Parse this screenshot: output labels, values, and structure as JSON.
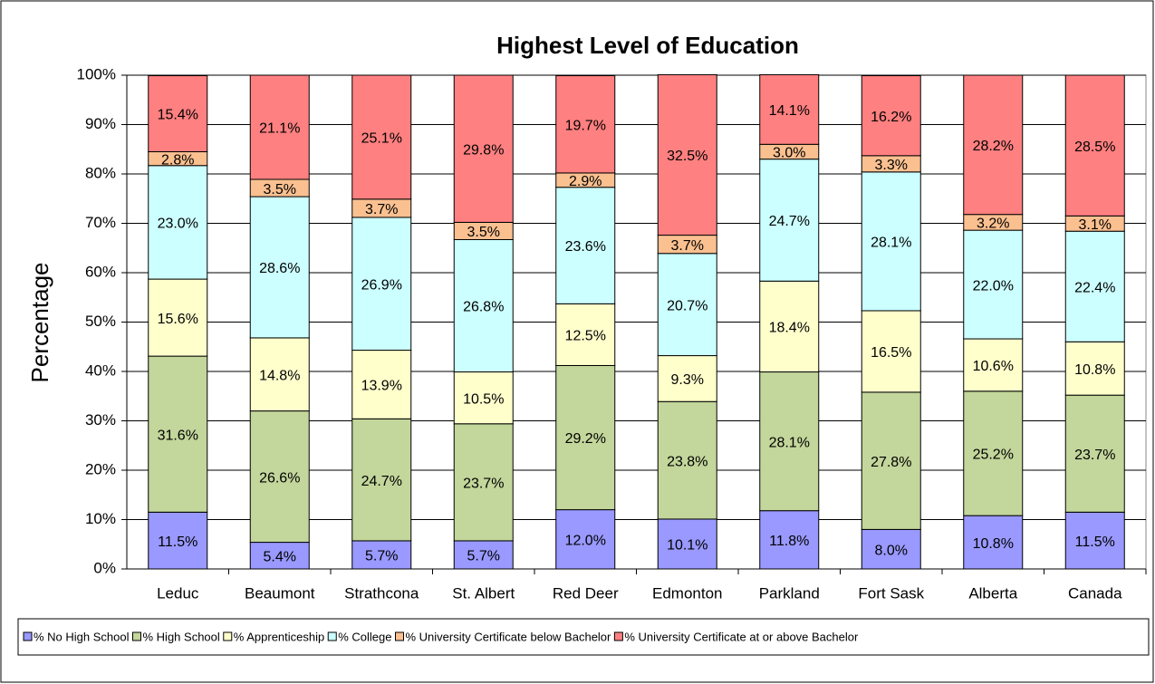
{
  "chart_data": {
    "type": "stacked_bar",
    "title": "Highest Level of Education",
    "y_label": "Percentage",
    "categories": [
      "Leduc",
      "Beaumont",
      "Strathcona",
      "St. Albert",
      "Red Deer",
      "Edmonton",
      "Parkland",
      "Fort Sask",
      "Alberta",
      "Canada"
    ],
    "series": [
      {
        "name": "% No High School",
        "color": "#9999ff",
        "values": [
          11.5,
          5.4,
          5.7,
          5.7,
          12.0,
          10.1,
          11.8,
          8.0,
          10.8,
          11.5
        ],
        "value_labels": [
          "11.5%",
          "5.4%",
          "5.7%",
          "5.7%",
          "12.0%",
          "10.1%",
          "11.8%",
          "8.0%",
          "10.8%",
          "11.5%"
        ]
      },
      {
        "name": "% High School",
        "color": "#c3d69b",
        "values": [
          31.6,
          26.6,
          24.7,
          23.7,
          29.2,
          23.8,
          28.1,
          27.8,
          25.2,
          23.7
        ],
        "value_labels": [
          "31.6%",
          "26.6%",
          "24.7%",
          "23.7%",
          "29.2%",
          "23.8%",
          "28.1%",
          "27.8%",
          "25.2%",
          "23.7%"
        ]
      },
      {
        "name": "% Apprenticeship",
        "color": "#ffffcc",
        "values": [
          15.6,
          14.8,
          13.9,
          10.5,
          12.5,
          9.3,
          18.4,
          16.5,
          10.6,
          10.8
        ],
        "value_labels": [
          "15.6%",
          "14.8%",
          "13.9%",
          "10.5%",
          "12.5%",
          "9.3%",
          "18.4%",
          "16.5%",
          "10.6%",
          "10.8%"
        ]
      },
      {
        "name": "% College",
        "color": "#ccffff",
        "values": [
          23.0,
          28.6,
          26.9,
          26.8,
          23.6,
          20.7,
          24.7,
          28.1,
          22.0,
          22.4
        ],
        "value_labels": [
          "23.0%",
          "28.6%",
          "26.9%",
          "26.8%",
          "23.6%",
          "20.7%",
          "24.7%",
          "28.1%",
          "22.0%",
          "22.4%"
        ]
      },
      {
        "name": "% University Certificate below Bachelor",
        "color": "#fac090",
        "values": [
          2.8,
          3.5,
          3.7,
          3.5,
          2.9,
          3.7,
          3.0,
          3.3,
          3.2,
          3.1
        ],
        "value_labels": [
          "2.8%",
          "3.5%",
          "3.7%",
          "3.5%",
          "2.9%",
          "3.7%",
          "3.0%",
          "3.3%",
          "3.2%",
          "3.1%"
        ]
      },
      {
        "name": "% University Certificate at or above Bachelor",
        "color": "#ff8080",
        "values": [
          15.4,
          21.1,
          25.1,
          29.8,
          19.7,
          32.5,
          14.1,
          16.2,
          28.2,
          28.5
        ],
        "value_labels": [
          "15.4%",
          "21.1%",
          "25.1%",
          "29.8%",
          "19.7%",
          "32.5%",
          "14.1%",
          "16.2%",
          "28.2%",
          "28.5%"
        ]
      }
    ],
    "ylim": [
      0,
      100
    ],
    "yticks": [
      {
        "value": 0,
        "label": "0%"
      },
      {
        "value": 10,
        "label": "10%"
      },
      {
        "value": 20,
        "label": "20%"
      },
      {
        "value": 30,
        "label": "30%"
      },
      {
        "value": 40,
        "label": "40%"
      },
      {
        "value": 50,
        "label": "50%"
      },
      {
        "value": 60,
        "label": "60%"
      },
      {
        "value": 70,
        "label": "70%"
      },
      {
        "value": 80,
        "label": "80%"
      },
      {
        "value": 90,
        "label": "90%"
      },
      {
        "value": 100,
        "label": "100%"
      }
    ],
    "grid": true,
    "legend": "bottom"
  }
}
